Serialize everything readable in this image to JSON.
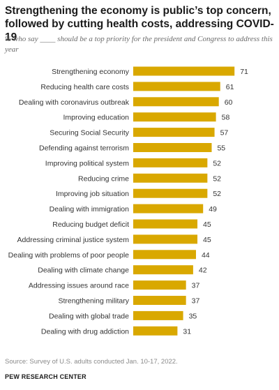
{
  "chart_data": {
    "type": "bar",
    "orientation": "horizontal",
    "title": "Strengthening the economy is public’s top concern, followed by cutting health costs, addressing COVID-19",
    "subtitle": "% who say ____ should be a top priority for the president and Congress to address this year",
    "categories": [
      "Strengthening economy",
      "Reducing health care costs",
      "Dealing with coronavirus outbreak",
      "Improving education",
      "Securing Social Security",
      "Defending against terrorism",
      "Improving political system",
      "Reducing crime",
      "Improving job situation",
      "Dealing with immigration",
      "Reducing budget deficit",
      "Addressing criminal justice system",
      "Dealing with problems of poor people",
      "Dealing with climate change",
      "Addressing issues around race",
      "Strengthening military",
      "Dealing with global trade",
      "Dealing with drug addiction"
    ],
    "values": [
      71,
      61,
      60,
      58,
      57,
      55,
      52,
      52,
      52,
      49,
      45,
      45,
      44,
      42,
      37,
      37,
      35,
      31
    ],
    "xlim": [
      0,
      100
    ],
    "grid": false,
    "legend": "none",
    "bar_color": "#d9a800"
  },
  "source": "Source: Survey of U.S. adults conducted Jan. 10-17, 2022.",
  "credit": "PEW RESEARCH CENTER"
}
